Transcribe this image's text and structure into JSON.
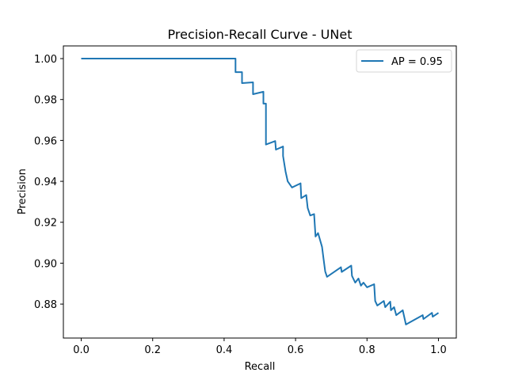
{
  "chart_data": {
    "type": "line",
    "title": "Precision-Recall Curve - UNet",
    "xlabel": "Recall",
    "ylabel": "Precision",
    "xlim": [
      -0.05,
      1.05
    ],
    "ylim": [
      0.8634,
      1.0062
    ],
    "xticks": [
      0.0,
      0.2,
      0.4,
      0.6,
      0.8,
      1.0
    ],
    "xtick_labels": [
      "0.0",
      "0.2",
      "0.4",
      "0.6",
      "0.8",
      "1.0"
    ],
    "yticks": [
      0.88,
      0.9,
      0.92,
      0.94,
      0.96,
      0.98,
      1.0
    ],
    "ytick_labels": [
      "0.88",
      "0.90",
      "0.92",
      "0.94",
      "0.96",
      "0.98",
      "1.00"
    ],
    "grid": false,
    "legend_position": "upper right",
    "series": [
      {
        "name": "AP = 0.95",
        "color": "#1f77b4",
        "x": [
          0.0,
          0.432,
          0.432,
          0.45,
          0.45,
          0.481,
          0.481,
          0.51,
          0.51,
          0.517,
          0.517,
          0.543,
          0.545,
          0.565,
          0.565,
          0.572,
          0.578,
          0.59,
          0.614,
          0.616,
          0.63,
          0.634,
          0.641,
          0.652,
          0.656,
          0.663,
          0.674,
          0.678,
          0.683,
          0.688,
          0.727,
          0.729,
          0.756,
          0.758,
          0.767,
          0.776,
          0.783,
          0.79,
          0.8,
          0.82,
          0.823,
          0.829,
          0.847,
          0.851,
          0.865,
          0.867,
          0.876,
          0.882,
          0.9,
          0.909,
          0.956,
          0.958,
          0.982,
          0.984,
          1.0
        ],
        "y": [
          1.0,
          1.0,
          0.9934,
          0.9934,
          0.988,
          0.9884,
          0.9826,
          0.9838,
          0.978,
          0.978,
          0.958,
          0.9597,
          0.9555,
          0.957,
          0.9524,
          0.9447,
          0.94,
          0.937,
          0.939,
          0.9318,
          0.9333,
          0.927,
          0.9233,
          0.924,
          0.913,
          0.9147,
          0.908,
          0.9025,
          0.896,
          0.8933,
          0.898,
          0.8957,
          0.8988,
          0.8938,
          0.8905,
          0.8925,
          0.889,
          0.8905,
          0.8882,
          0.8897,
          0.8815,
          0.8793,
          0.8815,
          0.8785,
          0.8812,
          0.877,
          0.8785,
          0.8746,
          0.877,
          0.87,
          0.8746,
          0.8727,
          0.8757,
          0.8738,
          0.8757
        ]
      }
    ]
  },
  "legend": {
    "label": "AP = 0.95"
  }
}
